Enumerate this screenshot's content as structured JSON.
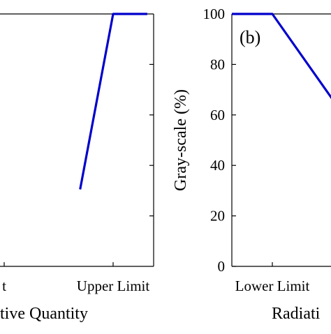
{
  "chart_data": [
    {
      "panel_label": "",
      "type": "line",
      "xlabel": "tive Quantity",
      "ylabel": "",
      "xticks": [
        "t",
        "Upper Limit"
      ],
      "yticks": [],
      "ylim": [
        0,
        100
      ],
      "series": [
        {
          "color": "#0000cc",
          "x": [
            0.71,
            1.0,
            1.3
          ],
          "y": [
            30.5,
            100,
            100
          ]
        }
      ]
    },
    {
      "panel_label": "(b)",
      "type": "line",
      "xlabel": "Radiati",
      "ylabel": "Gray-scale (%)",
      "xticks": [
        "Lower Limit"
      ],
      "yticks": [
        "0",
        "20",
        "40",
        "60",
        "80",
        "100"
      ],
      "ytick_values": [
        0,
        20,
        40,
        60,
        80,
        100
      ],
      "ylim": [
        0,
        100
      ],
      "series": [
        {
          "color": "#0000cc",
          "x": [
            0,
            0.4,
            1.05
          ],
          "y": [
            100,
            100,
            63
          ]
        }
      ]
    }
  ]
}
